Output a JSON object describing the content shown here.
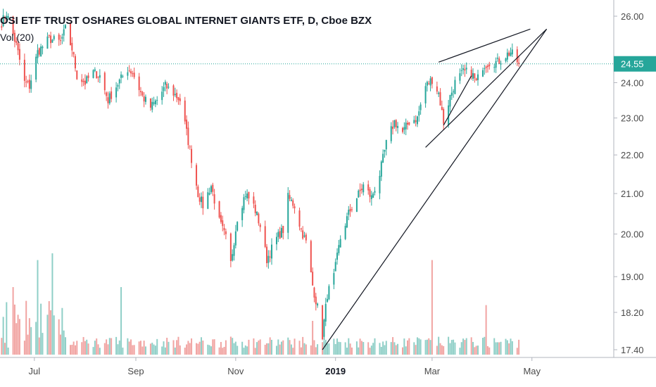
{
  "header": {
    "title": "OSI ETF TRUST OSHARES GLOBAL INTERNET GIANTS ETF, D, Cboe BZX",
    "volume_label": "Vol (20)"
  },
  "colors": {
    "up": "#26a69a",
    "down": "#ef5350",
    "vol_up": "#8fcfc7",
    "vol_down": "#f1a4a2",
    "price_line": "#26a69a",
    "trendline": "#131722"
  },
  "chart_data": {
    "type": "candlestick",
    "symbol": "OSI ETF TRUST OSHARES GLOBAL INTERNET GIANTS ETF",
    "interval": "D",
    "exchange": "Cboe BZX",
    "y_ticks": [
      "26.00",
      "24.00",
      "23.00",
      "22.00",
      "21.00",
      "20.00",
      "19.00",
      "18.20",
      "17.40"
    ],
    "y_scale": "log",
    "ylim": [
      17.4,
      26.4
    ],
    "last_price": "24.55",
    "x_ticks": [
      {
        "label": "Jul",
        "date": "2018-07-01"
      },
      {
        "label": "Sep",
        "date": "2018-09-01"
      },
      {
        "label": "Nov",
        "date": "2018-11-01"
      },
      {
        "label": "2019",
        "date": "2019-01-01",
        "bold": true
      },
      {
        "label": "Mar",
        "date": "2019-03-01"
      },
      {
        "label": "May",
        "date": "2019-05-01"
      }
    ],
    "xlim": [
      "2018-06-10",
      "2019-06-20"
    ],
    "price_path": [
      [
        "2018-06-11",
        25.8
      ],
      [
        "2018-06-14",
        26.1
      ],
      [
        "2018-06-20",
        25.1
      ],
      [
        "2018-06-25",
        24.0
      ],
      [
        "2018-06-28",
        23.9
      ],
      [
        "2018-07-03",
        24.9
      ],
      [
        "2018-07-10",
        25.3
      ],
      [
        "2018-07-17",
        25.2
      ],
      [
        "2018-07-20",
        25.6
      ],
      [
        "2018-07-24",
        25.0
      ],
      [
        "2018-07-27",
        24.2
      ],
      [
        "2018-08-01",
        24.0
      ],
      [
        "2018-08-06",
        24.3
      ],
      [
        "2018-08-10",
        24.2
      ],
      [
        "2018-08-15",
        23.5
      ],
      [
        "2018-08-20",
        23.9
      ],
      [
        "2018-08-27",
        24.4
      ],
      [
        "2018-08-30",
        24.3
      ],
      [
        "2018-09-05",
        23.6
      ],
      [
        "2018-09-10",
        23.3
      ],
      [
        "2018-09-14",
        23.5
      ],
      [
        "2018-09-19",
        23.9
      ],
      [
        "2018-09-24",
        23.7
      ],
      [
        "2018-09-28",
        23.5
      ],
      [
        "2018-10-02",
        22.6
      ],
      [
        "2018-10-05",
        21.9
      ],
      [
        "2018-10-09",
        21.0
      ],
      [
        "2018-10-12",
        20.7
      ],
      [
        "2018-10-17",
        21.2
      ],
      [
        "2018-10-22",
        20.3
      ],
      [
        "2018-10-26",
        19.9
      ],
      [
        "2018-10-29",
        19.3
      ],
      [
        "2018-11-02",
        20.4
      ],
      [
        "2018-11-07",
        21.0
      ],
      [
        "2018-11-12",
        20.7
      ],
      [
        "2018-11-16",
        20.2
      ],
      [
        "2018-11-20",
        19.4
      ],
      [
        "2018-11-26",
        19.9
      ],
      [
        "2018-11-30",
        20.1
      ],
      [
        "2018-12-03",
        20.9
      ],
      [
        "2018-12-07",
        20.7
      ],
      [
        "2018-12-11",
        20.1
      ],
      [
        "2018-12-14",
        19.8
      ],
      [
        "2018-12-18",
        18.8
      ],
      [
        "2018-12-21",
        18.3
      ],
      [
        "2018-12-24",
        17.7
      ],
      [
        "2018-12-27",
        18.6
      ],
      [
        "2018-12-31",
        19.0
      ],
      [
        "2019-01-04",
        19.9
      ],
      [
        "2019-01-09",
        20.5
      ],
      [
        "2019-01-14",
        20.9
      ],
      [
        "2019-01-18",
        21.2
      ],
      [
        "2019-01-23",
        20.9
      ],
      [
        "2019-01-28",
        21.5
      ],
      [
        "2019-02-01",
        22.3
      ],
      [
        "2019-02-06",
        22.9
      ],
      [
        "2019-02-11",
        22.6
      ],
      [
        "2019-02-15",
        22.9
      ],
      [
        "2019-02-20",
        23.0
      ],
      [
        "2019-02-25",
        23.9
      ],
      [
        "2019-03-01",
        24.1
      ],
      [
        "2019-03-05",
        23.7
      ],
      [
        "2019-03-08",
        22.9
      ],
      [
        "2019-03-12",
        23.6
      ],
      [
        "2019-03-15",
        24.0
      ],
      [
        "2019-03-20",
        24.3
      ],
      [
        "2019-03-25",
        24.3
      ],
      [
        "2019-03-28",
        24.0
      ],
      [
        "2019-04-01",
        24.5
      ],
      [
        "2019-04-05",
        24.6
      ],
      [
        "2019-04-10",
        24.6
      ],
      [
        "2019-04-15",
        24.8
      ],
      [
        "2019-04-18",
        24.9
      ],
      [
        "2019-04-23",
        24.55
      ]
    ],
    "volume_spikes": [
      [
        "2018-06-18",
        0.3
      ],
      [
        "2018-07-03",
        0.42
      ],
      [
        "2018-07-12",
        0.45
      ],
      [
        "2018-08-23",
        0.3
      ],
      [
        "2018-12-18",
        0.15
      ],
      [
        "2019-03-01",
        0.42
      ],
      [
        "2019-04-03",
        0.22
      ]
    ],
    "trendlines": [
      {
        "points": [
          [
            "2018-12-24",
            17.4
          ],
          [
            "2019-05-10",
            25.6
          ]
        ]
      },
      {
        "points": [
          [
            "2019-02-25",
            22.2
          ],
          [
            "2019-05-10",
            25.6
          ]
        ]
      },
      {
        "points": [
          [
            "2019-03-05",
            24.6
          ],
          [
            "2019-04-30",
            25.6
          ]
        ]
      },
      {
        "points": [
          [
            "2019-03-08",
            22.8
          ],
          [
            "2019-03-25",
            24.2
          ]
        ]
      }
    ]
  }
}
